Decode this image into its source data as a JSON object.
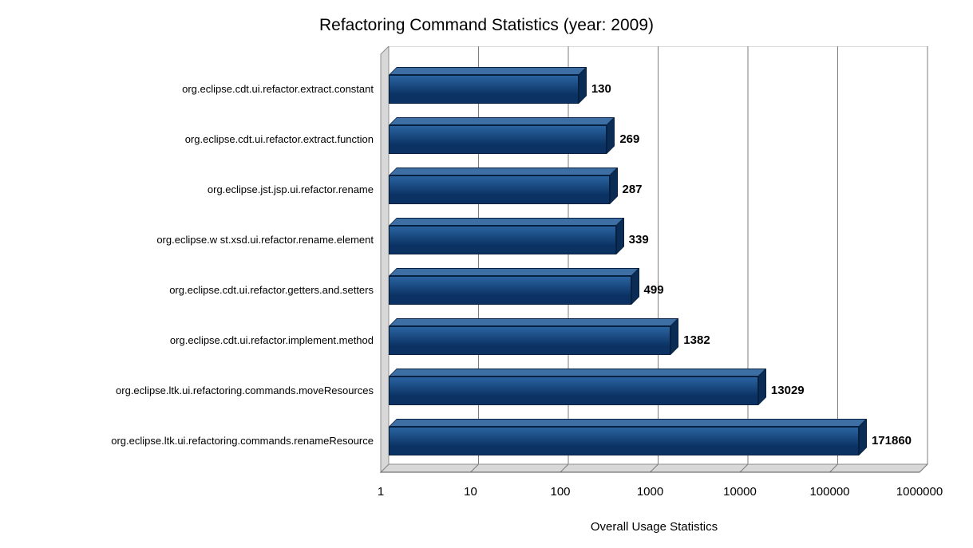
{
  "chart_data": {
    "type": "bar",
    "orientation": "horizontal",
    "title": "Refactoring Command Statistics (year: 2009)",
    "xlabel": "Overall Usage Statistics",
    "ylabel": "",
    "x_scale": "log10",
    "xlim": [
      1,
      1000000
    ],
    "x_ticks": [
      "1",
      "10",
      "100",
      "1000",
      "10000",
      "100000",
      "1000000"
    ],
    "categories": [
      "org.eclipse.cdt.ui.refactor.extract.constant",
      "org.eclipse.cdt.ui.refactor.extract.function",
      "org.eclipse.jst.jsp.ui.refactor.rename",
      "org.eclipse.w st.xsd.ui.refactor.rename.element",
      "org.eclipse.cdt.ui.refactor.getters.and.setters",
      "org.eclipse.cdt.ui.refactor.implement.method",
      "org.eclipse.ltk.ui.refactoring.commands.moveResources",
      "org.eclipse.ltk.ui.refactoring.commands.renameResource"
    ],
    "values": [
      130,
      269,
      287,
      339,
      499,
      1382,
      13029,
      171860
    ],
    "grid": true,
    "legend": false,
    "style": {
      "bar_top_face": "#3d6fa5",
      "bar_front_top": "#2a63a0",
      "bar_front_bottom": "#0b3263",
      "bar_side_face": "#0a2c55",
      "bar_outline": "#06203f",
      "grid_color": "#7d7d7d",
      "wall_fill": "#d8d8d8",
      "wall_edge": "#8c8c8c",
      "back_wall_fill": "#ffffff",
      "back_wall_edge": "#b8b8b8",
      "background": "#ffffff",
      "text_color": "#000000"
    }
  }
}
